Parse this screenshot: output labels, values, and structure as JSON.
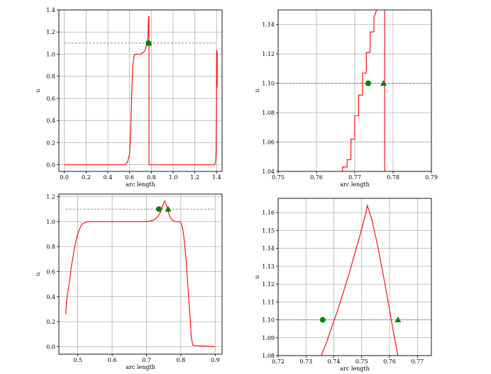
{
  "chart_data": [
    {
      "type": "line",
      "title": "",
      "xlabel": "arc length",
      "ylabel": "u",
      "xlim": [
        -0.05,
        1.45
      ],
      "ylim": [
        -0.06,
        1.4
      ],
      "xticks": [
        0.0,
        0.2,
        0.4,
        0.6,
        0.8,
        1.0,
        1.2,
        1.4
      ],
      "xtick_labels": [
        "0.0",
        "0.2",
        "0.4",
        "0.6",
        "0.8",
        "1.0",
        "1.2",
        "1.4"
      ],
      "yticks": [
        0.0,
        0.2,
        0.4,
        0.6,
        0.8,
        1.0,
        1.2,
        1.4
      ],
      "ytick_labels": [
        "0.0",
        "0.2",
        "0.4",
        "0.6",
        "0.8",
        "1.0",
        "1.2",
        "1.4"
      ],
      "grid": true,
      "reference_line": {
        "y": 1.1,
        "x_start": 0.0,
        "x_end": 1.4,
        "style": "dashed",
        "color": "#808080"
      },
      "series": [
        {
          "color": "#ff0000",
          "x": [
            0.0,
            0.55,
            0.58,
            0.6,
            0.61,
            0.62,
            0.63,
            0.64,
            0.65,
            0.66,
            0.68,
            0.7,
            0.72,
            0.74,
            0.75,
            0.76,
            0.765,
            0.768,
            0.77,
            0.771,
            0.772,
            0.773,
            0.775,
            0.777,
            0.778,
            0.778
          ],
          "y": [
            0.0,
            0.0,
            0.02,
            0.1,
            0.3,
            0.65,
            0.9,
            0.98,
            1.0,
            1.0,
            1.0,
            1.0,
            1.01,
            1.03,
            1.06,
            1.09,
            1.12,
            1.15,
            1.19,
            1.23,
            1.27,
            1.3,
            1.33,
            1.34,
            1.34,
            0.0
          ]
        },
        {
          "color": "#ff0000",
          "x": [
            0.778,
            1.38,
            1.39,
            1.395,
            1.398,
            1.4
          ],
          "y": [
            0.0,
            0.0,
            0.02,
            0.12,
            0.5,
            1.04
          ]
        },
        {
          "color": "#ff0000",
          "x": [
            1.405,
            1.405
          ],
          "y": [
            0.7,
            1.02
          ]
        }
      ],
      "markers": [
        {
          "shape": "circle",
          "x": 0.7735,
          "y": 1.1,
          "color": "#008000"
        },
        {
          "shape": "triangle",
          "x": 0.7775,
          "y": 1.1,
          "color": "#008000"
        }
      ]
    },
    {
      "type": "line",
      "title": "",
      "xlabel": "arc length",
      "ylabel": "u",
      "xlim": [
        0.75,
        0.79
      ],
      "ylim": [
        1.04,
        1.15
      ],
      "xticks": [
        0.75,
        0.76,
        0.77,
        0.78,
        0.79
      ],
      "xtick_labels": [
        "0.75",
        "0.76",
        "0.77",
        "0.78",
        "0.79"
      ],
      "yticks": [
        1.04,
        1.06,
        1.08,
        1.1,
        1.12,
        1.14
      ],
      "ytick_labels": [
        "1.04",
        "1.06",
        "1.08",
        "1.10",
        "1.12",
        "1.14"
      ],
      "grid": true,
      "reference_line": {
        "y": 1.1,
        "x_start": 0.75,
        "x_end": 0.79,
        "style": "dashed",
        "color": "#808080"
      },
      "series": [
        {
          "color": "#ff0000",
          "x": [
            0.7665,
            0.7668,
            0.7668,
            0.768,
            0.768,
            0.769,
            0.769,
            0.77,
            0.77,
            0.771,
            0.771,
            0.772,
            0.772,
            0.773,
            0.773,
            0.774,
            0.774,
            0.775,
            0.775,
            0.7757
          ],
          "y": [
            1.04,
            1.04,
            1.043,
            1.043,
            1.048,
            1.048,
            1.062,
            1.062,
            1.078,
            1.078,
            1.092,
            1.092,
            1.107,
            1.107,
            1.121,
            1.121,
            1.135,
            1.135,
            1.145,
            1.15
          ]
        },
        {
          "color": "#ff0000",
          "x": [
            0.7778,
            0.7778
          ],
          "y": [
            1.04,
            1.15
          ]
        }
      ],
      "markers": [
        {
          "shape": "circle",
          "x": 0.7735,
          "y": 1.1,
          "color": "#008000"
        },
        {
          "shape": "triangle",
          "x": 0.7775,
          "y": 1.1,
          "color": "#008000"
        }
      ]
    },
    {
      "type": "line",
      "title": "",
      "xlabel": "arc length",
      "ylabel": "u",
      "xlim": [
        0.445,
        0.92
      ],
      "ylim": [
        -0.06,
        1.22
      ],
      "xticks": [
        0.5,
        0.6,
        0.7,
        0.8,
        0.9
      ],
      "xtick_labels": [
        "0.5",
        "0.6",
        "0.7",
        "0.8",
        "0.9"
      ],
      "yticks": [
        0.0,
        0.2,
        0.4,
        0.6,
        0.8,
        1.0,
        1.2
      ],
      "ytick_labels": [
        "0.0",
        "0.2",
        "0.4",
        "0.6",
        "0.8",
        "1.0",
        "1.2"
      ],
      "grid": true,
      "reference_line": {
        "y": 1.1,
        "x_start": 0.465,
        "x_end": 0.9,
        "style": "dashed",
        "color": "#808080"
      },
      "series": [
        {
          "color": "#ff0000",
          "x": [
            0.465,
            0.467,
            0.47,
            0.475,
            0.48,
            0.485,
            0.49,
            0.495,
            0.5,
            0.505,
            0.51,
            0.515,
            0.52,
            0.53,
            0.55,
            0.6,
            0.65,
            0.7,
            0.72,
            0.73,
            0.74,
            0.745,
            0.75,
            0.753,
            0.757,
            0.762,
            0.768,
            0.775,
            0.785,
            0.795,
            0.8,
            0.805,
            0.81,
            0.815,
            0.82,
            0.825,
            0.828,
            0.83,
            0.835,
            0.9
          ],
          "y": [
            0.26,
            0.35,
            0.42,
            0.5,
            0.62,
            0.7,
            0.78,
            0.85,
            0.9,
            0.94,
            0.97,
            0.985,
            0.99,
            1.0,
            1.0,
            1.0,
            1.0,
            1.0,
            1.01,
            1.03,
            1.07,
            1.11,
            1.15,
            1.165,
            1.14,
            1.09,
            1.04,
            1.01,
            1.0,
            1.0,
            0.99,
            0.95,
            0.85,
            0.7,
            0.5,
            0.3,
            0.2,
            0.08,
            0.01,
            0.0
          ]
        }
      ],
      "markers": [
        {
          "shape": "circle",
          "x": 0.736,
          "y": 1.1,
          "color": "#008000"
        },
        {
          "shape": "triangle",
          "x": 0.763,
          "y": 1.1,
          "color": "#008000"
        }
      ]
    },
    {
      "type": "line",
      "title": "",
      "xlabel": "arc length",
      "ylabel": "u",
      "xlim": [
        0.72,
        0.775
      ],
      "ylim": [
        1.08,
        1.168
      ],
      "xticks": [
        0.72,
        0.73,
        0.74,
        0.75,
        0.76,
        0.77
      ],
      "xtick_labels": [
        "0.72",
        "0.73",
        "0.74",
        "0.75",
        "0.76",
        "0.77"
      ],
      "yticks": [
        1.08,
        1.09,
        1.1,
        1.11,
        1.12,
        1.13,
        1.14,
        1.15,
        1.16
      ],
      "ytick_labels": [
        "1.08",
        "1.09",
        "1.10",
        "1.11",
        "1.12",
        "1.13",
        "1.14",
        "1.15",
        "1.16"
      ],
      "grid": true,
      "reference_line": {
        "y": 1.1,
        "x_start": 0.72,
        "x_end": 0.775,
        "style": "dashed",
        "color": "#808080"
      },
      "series": [
        {
          "color": "#ff0000",
          "x": [
            0.7355,
            0.7375,
            0.7395,
            0.7415,
            0.7435,
            0.7455,
            0.7475,
            0.7495,
            0.7515,
            0.752,
            0.7535,
            0.7555,
            0.7575,
            0.7595,
            0.7615,
            0.763
          ],
          "y": [
            1.08,
            1.088,
            1.097,
            1.106,
            1.116,
            1.126,
            1.137,
            1.148,
            1.16,
            1.164,
            1.157,
            1.143,
            1.127,
            1.11,
            1.092,
            1.08
          ]
        }
      ],
      "markers": [
        {
          "shape": "circle",
          "x": 0.736,
          "y": 1.1,
          "color": "#008000"
        },
        {
          "shape": "triangle",
          "x": 0.763,
          "y": 1.1,
          "color": "#008000"
        }
      ]
    }
  ]
}
